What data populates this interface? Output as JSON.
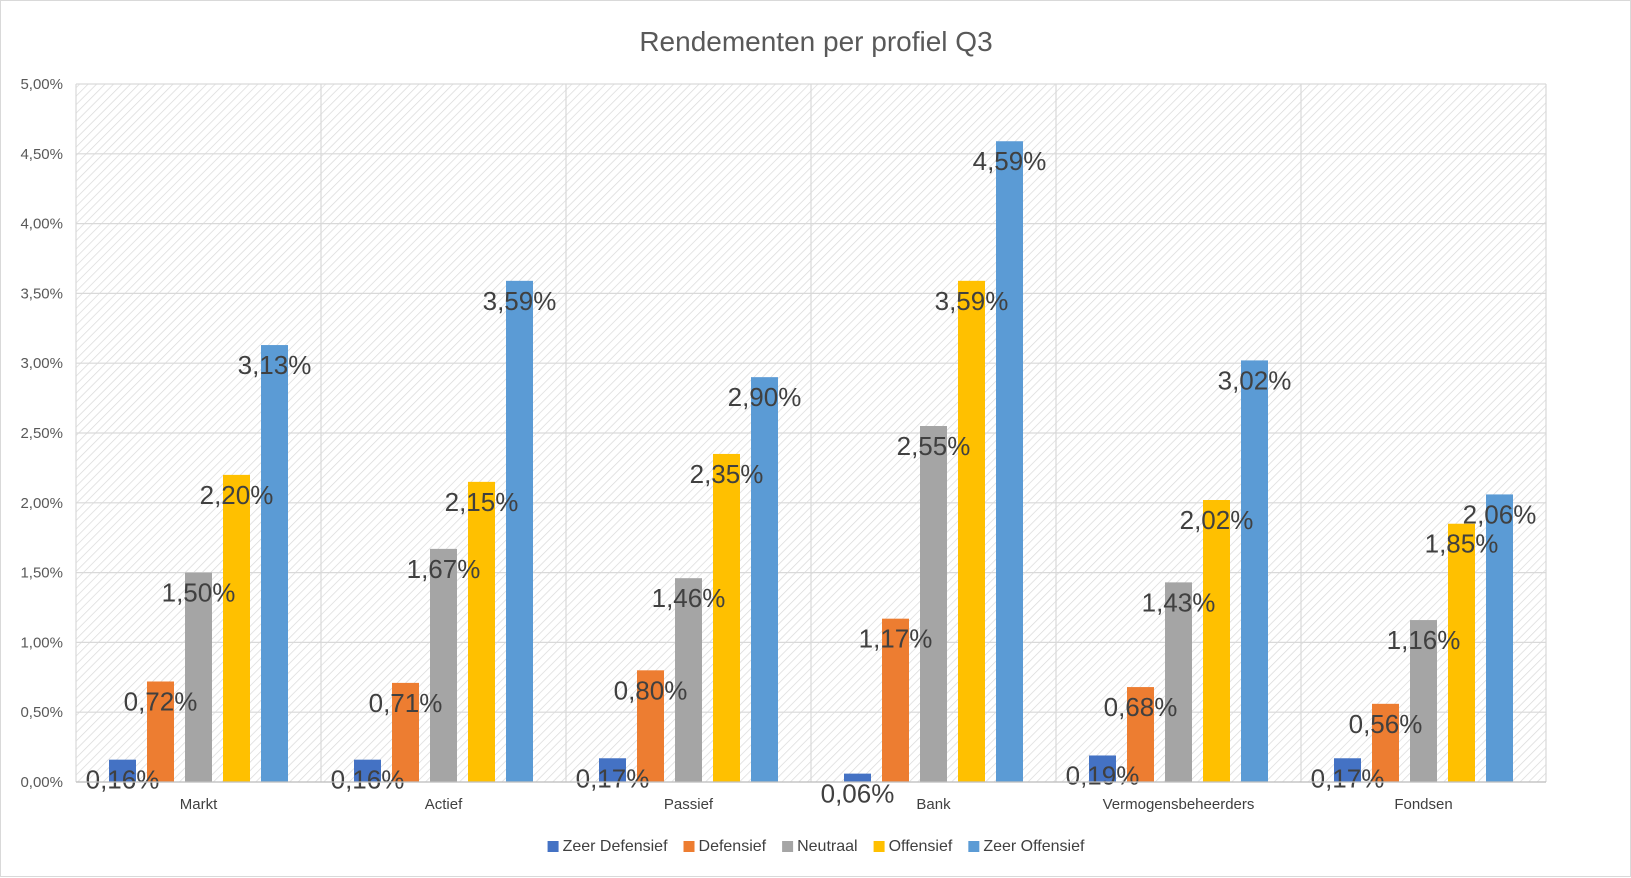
{
  "chart_data": {
    "type": "bar",
    "title": "Rendementen per profiel Q3",
    "xlabel": "",
    "ylabel": "",
    "ylim": [
      0,
      5
    ],
    "yticks": [
      "0,00%",
      "0,50%",
      "1,00%",
      "1,50%",
      "2,00%",
      "2,50%",
      "3,00%",
      "3,50%",
      "4,00%",
      "4,50%",
      "5,00%"
    ],
    "categories": [
      "Markt",
      "Actief",
      "Passief",
      "Bank",
      "Vermogensbeheerders",
      "Fondsen"
    ],
    "series": [
      {
        "name": "Zeer Defensief",
        "color": "#4472c4",
        "values": [
          0.16,
          0.16,
          0.17,
          0.06,
          0.19,
          0.17
        ],
        "labels": [
          "0,16%",
          "0,16%",
          "0,17%",
          "0,06%",
          "0,19%",
          "0,17%"
        ]
      },
      {
        "name": "Defensief",
        "color": "#ed7d31",
        "values": [
          0.72,
          0.71,
          0.8,
          1.17,
          0.68,
          0.56
        ],
        "labels": [
          "0,72%",
          "0,71%",
          "0,80%",
          "1,17%",
          "0,68%",
          "0,56%"
        ]
      },
      {
        "name": "Neutraal",
        "color": "#a5a5a5",
        "values": [
          1.5,
          1.67,
          1.46,
          2.55,
          1.43,
          1.16
        ],
        "labels": [
          "1,50%",
          "1,67%",
          "1,46%",
          "2,55%",
          "1,43%",
          "1,16%"
        ]
      },
      {
        "name": "Offensief",
        "color": "#ffc000",
        "values": [
          2.2,
          2.15,
          2.35,
          3.59,
          2.02,
          1.85
        ],
        "labels": [
          "2,20%",
          "2,15%",
          "2,35%",
          "3,59%",
          "2,02%",
          "1,85%"
        ]
      },
      {
        "name": "Zeer Offensief",
        "color": "#5b9bd5",
        "values": [
          3.13,
          3.59,
          2.9,
          4.59,
          3.02,
          2.06
        ],
        "labels": [
          "3,13%",
          "3,59%",
          "2,90%",
          "4,59%",
          "3,02%",
          "2,06%"
        ]
      }
    ],
    "grid": true,
    "legend": "bottom"
  }
}
